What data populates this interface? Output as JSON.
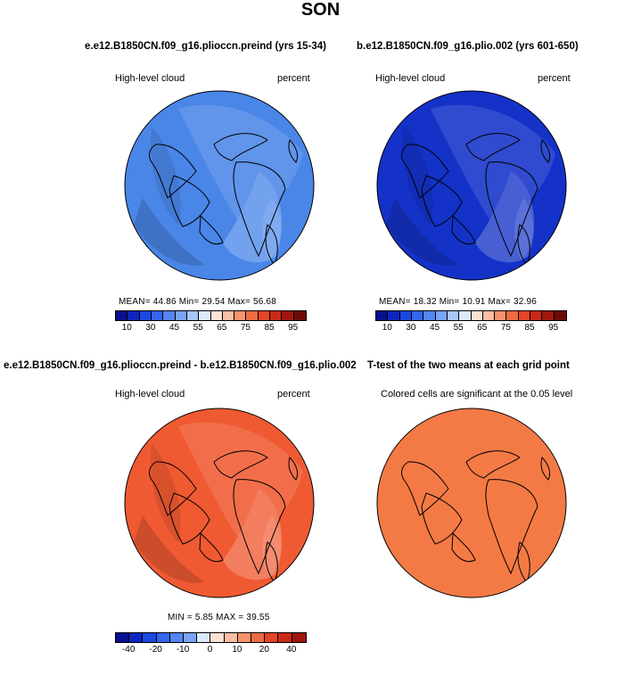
{
  "page": {
    "title": "SON"
  },
  "panels": {
    "p1": {
      "title": "e.e12.B1850CN.f09_g16.plioccn.preind (yrs 15-34)",
      "left_label": "High-level cloud",
      "right_label": "percent",
      "stats": "MEAN=   44.86   Min=   29.54   Max=   56.68",
      "base_color": "#4a86e8"
    },
    "p2": {
      "title": "b.e12.B1850CN.f09_g16.plio.002 (yrs 601-650)",
      "left_label": "High-level cloud",
      "right_label": "percent",
      "stats": "MEAN=   18.32   Min=   10.91   Max=   32.96",
      "base_color": "#1432c8"
    },
    "p3": {
      "title": "e.e12.B1850CN.f09_g16.plioccn.preind - b.e12.B1850CN.f09_g16.plio.002",
      "left_label": "High-level cloud",
      "right_label": "percent",
      "stats": "MIN =    5.85  MAX =   39.55",
      "base_color": "#f05a32"
    },
    "p4": {
      "title": "T-test of the two means at each grid point",
      "subtitle": "Colored cells are significant at the 0.05 level",
      "base_color": "#f47a45"
    }
  },
  "chart_data": [
    {
      "type": "polar-contour-map",
      "panel": "p1",
      "title": "e.e12.B1850CN.f09_g16.plioccn.preind (yrs 15-34)",
      "variable": "High-level cloud",
      "units": "percent",
      "mean": 44.86,
      "min": 29.54,
      "max": 56.68,
      "colorbar": {
        "tick_labels": [
          "10",
          "30",
          "45",
          "55",
          "65",
          "75",
          "85",
          "95"
        ],
        "colors": [
          "#08108f",
          "#0c26c0",
          "#1b48e0",
          "#3466ee",
          "#5585f3",
          "#7aa4f6",
          "#a7c6fa",
          "#dce9fd",
          "#fde2d4",
          "#fbbda3",
          "#f7936c",
          "#f06c43",
          "#e34525",
          "#c92a18",
          "#a01710",
          "#6e0b06"
        ]
      }
    },
    {
      "type": "polar-contour-map",
      "panel": "p2",
      "title": "b.e12.B1850CN.f09_g16.plio.002 (yrs 601-650)",
      "variable": "High-level cloud",
      "units": "percent",
      "mean": 18.32,
      "min": 10.91,
      "max": 32.96,
      "colorbar": {
        "tick_labels": [
          "10",
          "30",
          "45",
          "55",
          "65",
          "75",
          "85",
          "95"
        ],
        "colors": [
          "#08108f",
          "#0c26c0",
          "#1b48e0",
          "#3466ee",
          "#5585f3",
          "#7aa4f6",
          "#a7c6fa",
          "#dce9fd",
          "#fde2d4",
          "#fbbda3",
          "#f7936c",
          "#f06c43",
          "#e34525",
          "#c92a18",
          "#a01710",
          "#6e0b06"
        ]
      }
    },
    {
      "type": "polar-contour-map",
      "panel": "p3",
      "title": "e.e12.B1850CN.f09_g16.plioccn.preind - b.e12.B1850CN.f09_g16.plio.002",
      "variable": "High-level cloud",
      "units": "percent",
      "min": 5.85,
      "max": 39.55,
      "colorbar": {
        "tick_labels": [
          "-40",
          "-20",
          "-10",
          "0",
          "10",
          "20",
          "40"
        ],
        "colors": [
          "#08108f",
          "#0c26c0",
          "#1b48e0",
          "#3466ee",
          "#5585f3",
          "#7aa4f6",
          "#dce9fd",
          "#fde2d4",
          "#fbbda3",
          "#f7936c",
          "#f06c43",
          "#e34525",
          "#c92a18",
          "#a01710"
        ]
      }
    },
    {
      "type": "polar-significance-map",
      "panel": "p4",
      "title": "T-test of the two means at each grid point",
      "subtitle": "Colored cells are significant at the 0.05 level"
    }
  ]
}
